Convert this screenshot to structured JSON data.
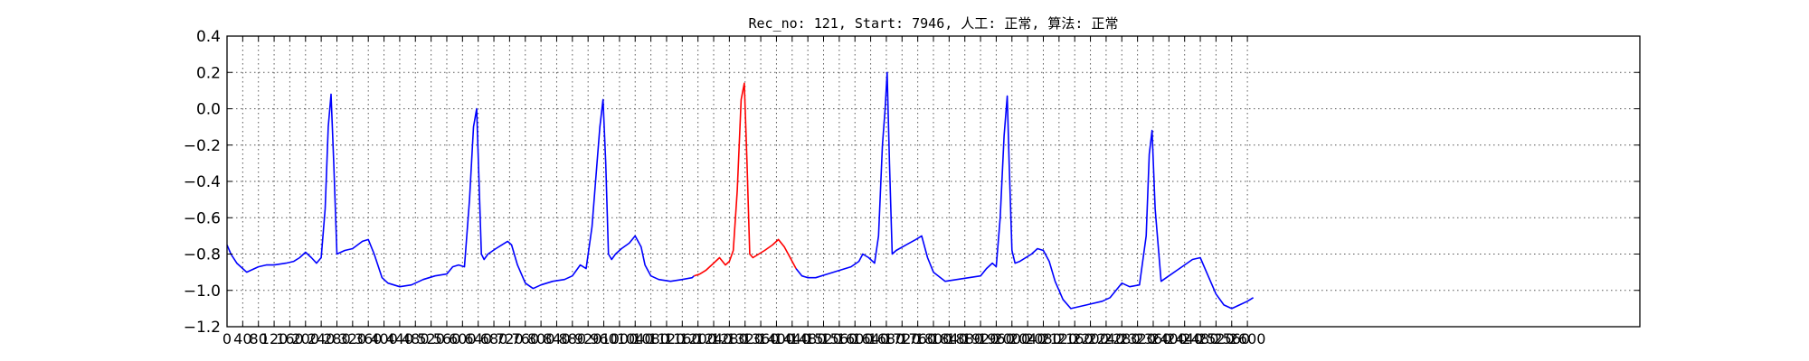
{
  "chart_data": {
    "type": "line",
    "title": "Rec_no: 121, Start: 7946, 人工: 正常, 算法: 正常",
    "xlabel": "",
    "ylabel": "",
    "xlim": [
      0,
      3600
    ],
    "ylim": [
      -1.2,
      0.4
    ],
    "grid": true,
    "yticks": [
      0.4,
      0.2,
      0.0,
      -0.2,
      -0.4,
      -0.6,
      -0.8,
      -1.0,
      -1.2
    ],
    "ytick_labels": [
      "0.4",
      "0.2",
      "0.0",
      "−0.2",
      "−0.4",
      "−0.6",
      "−0.8",
      "−1.0",
      "−1.2"
    ],
    "xticks": [
      0,
      40,
      80,
      120,
      160,
      200,
      240,
      280,
      320,
      360,
      400,
      440,
      480,
      520,
      560,
      600,
      640,
      680,
      720,
      760,
      800,
      840,
      880,
      920,
      960,
      1000,
      1040,
      1080,
      1120,
      1160,
      1200,
      1240,
      1280,
      1320,
      1360,
      1400,
      1440,
      1480,
      1520,
      1560,
      1600,
      1640,
      1680,
      1720,
      1760,
      1800,
      1840,
      1880,
      1920,
      1960,
      2000,
      2040,
      2080,
      2120,
      2160,
      2200,
      2240,
      2280,
      2320,
      2360,
      2400,
      2440,
      2480,
      2520,
      2560,
      2600
    ],
    "series": [
      {
        "color": "#0000ff",
        "x": [
          0,
          10,
          25,
          40,
          50,
          60,
          80,
          100,
          120,
          150,
          170,
          185,
          200,
          215,
          228,
          240,
          250,
          258,
          265,
          272,
          280,
          290,
          300,
          320,
          345,
          360,
          375,
          395,
          410,
          440,
          470,
          500,
          530,
          560,
          575,
          590,
          605,
          618,
          628,
          636,
          642,
          648,
          655,
          665,
          685,
          700,
          715,
          725,
          740,
          760,
          780,
          800,
          830,
          860,
          880,
          890,
          900,
          915,
          930,
          950,
          958,
          965,
          972,
          980,
          990,
          1005,
          1025,
          1040,
          1055,
          1065,
          1080,
          1100,
          1130,
          1160,
          1185,
          1190
        ],
        "y": [
          -0.75,
          -0.8,
          -0.85,
          -0.88,
          -0.9,
          -0.89,
          -0.87,
          -0.86,
          -0.86,
          -0.85,
          -0.84,
          -0.82,
          -0.79,
          -0.82,
          -0.85,
          -0.82,
          -0.55,
          -0.1,
          0.08,
          -0.3,
          -0.8,
          -0.79,
          -0.78,
          -0.77,
          -0.73,
          -0.72,
          -0.8,
          -0.93,
          -0.96,
          -0.98,
          -0.97,
          -0.94,
          -0.92,
          -0.91,
          -0.87,
          -0.86,
          -0.87,
          -0.5,
          -0.1,
          0.0,
          -0.4,
          -0.8,
          -0.83,
          -0.8,
          -0.77,
          -0.75,
          -0.73,
          -0.75,
          -0.86,
          -0.96,
          -0.99,
          -0.97,
          -0.95,
          -0.94,
          -0.92,
          -0.89,
          -0.86,
          -0.88,
          -0.65,
          -0.1,
          0.05,
          -0.3,
          -0.8,
          -0.83,
          -0.8,
          -0.77,
          -0.74,
          -0.7,
          -0.76,
          -0.86,
          -0.92,
          -0.94,
          -0.95,
          -0.94,
          -0.93,
          -0.92
        ]
      },
      {
        "color": "#ff0000",
        "x": [
          1190,
          1205,
          1220,
          1240,
          1255,
          1270,
          1280,
          1290,
          1300,
          1310,
          1318,
          1325,
          1332,
          1340,
          1355,
          1370,
          1390,
          1405,
          1420,
          1435,
          1450
        ],
        "y": [
          -0.92,
          -0.91,
          -0.89,
          -0.85,
          -0.82,
          -0.86,
          -0.84,
          -0.78,
          -0.45,
          0.05,
          0.14,
          -0.3,
          -0.8,
          -0.82,
          -0.8,
          -0.78,
          -0.75,
          -0.72,
          -0.76,
          -0.82,
          -0.88
        ]
      },
      {
        "color": "#0000ff",
        "x": [
          1450,
          1465,
          1480,
          1500,
          1530,
          1560,
          1590,
          1610,
          1620,
          1635,
          1650,
          1660,
          1670,
          1677,
          1682,
          1688,
          1695,
          1705,
          1730,
          1755,
          1770,
          1785,
          1800,
          1830,
          1860,
          1890,
          1920,
          1935,
          1950,
          1960,
          1970,
          1980,
          1988,
          1993,
          2000,
          2008,
          2020,
          2050,
          2065,
          2080,
          2095,
          2110,
          2130,
          2150,
          2190,
          2230,
          2250,
          2265,
          2280,
          2300,
          2325,
          2342,
          2350,
          2357,
          2365,
          2380,
          2400,
          2420,
          2440,
          2460,
          2480,
          2500,
          2520,
          2540,
          2560,
          2580,
          2600,
          2615
        ],
        "y": [
          -0.88,
          -0.92,
          -0.93,
          -0.93,
          -0.91,
          -0.89,
          -0.87,
          -0.84,
          -0.8,
          -0.82,
          -0.85,
          -0.7,
          -0.2,
          0.0,
          0.2,
          -0.3,
          -0.8,
          -0.78,
          -0.75,
          -0.72,
          -0.7,
          -0.82,
          -0.9,
          -0.95,
          -0.94,
          -0.93,
          -0.92,
          -0.88,
          -0.85,
          -0.87,
          -0.6,
          -0.15,
          0.07,
          -0.3,
          -0.78,
          -0.85,
          -0.84,
          -0.8,
          -0.77,
          -0.78,
          -0.84,
          -0.95,
          -1.05,
          -1.1,
          -1.08,
          -1.06,
          -1.04,
          -1.0,
          -0.96,
          -0.98,
          -0.97,
          -0.7,
          -0.25,
          -0.12,
          -0.55,
          -0.95,
          -0.92,
          -0.89,
          -0.86,
          -0.83,
          -0.82,
          -0.92,
          -1.02,
          -1.08,
          -1.1,
          -1.08,
          -1.06,
          -1.04
        ]
      }
    ]
  }
}
